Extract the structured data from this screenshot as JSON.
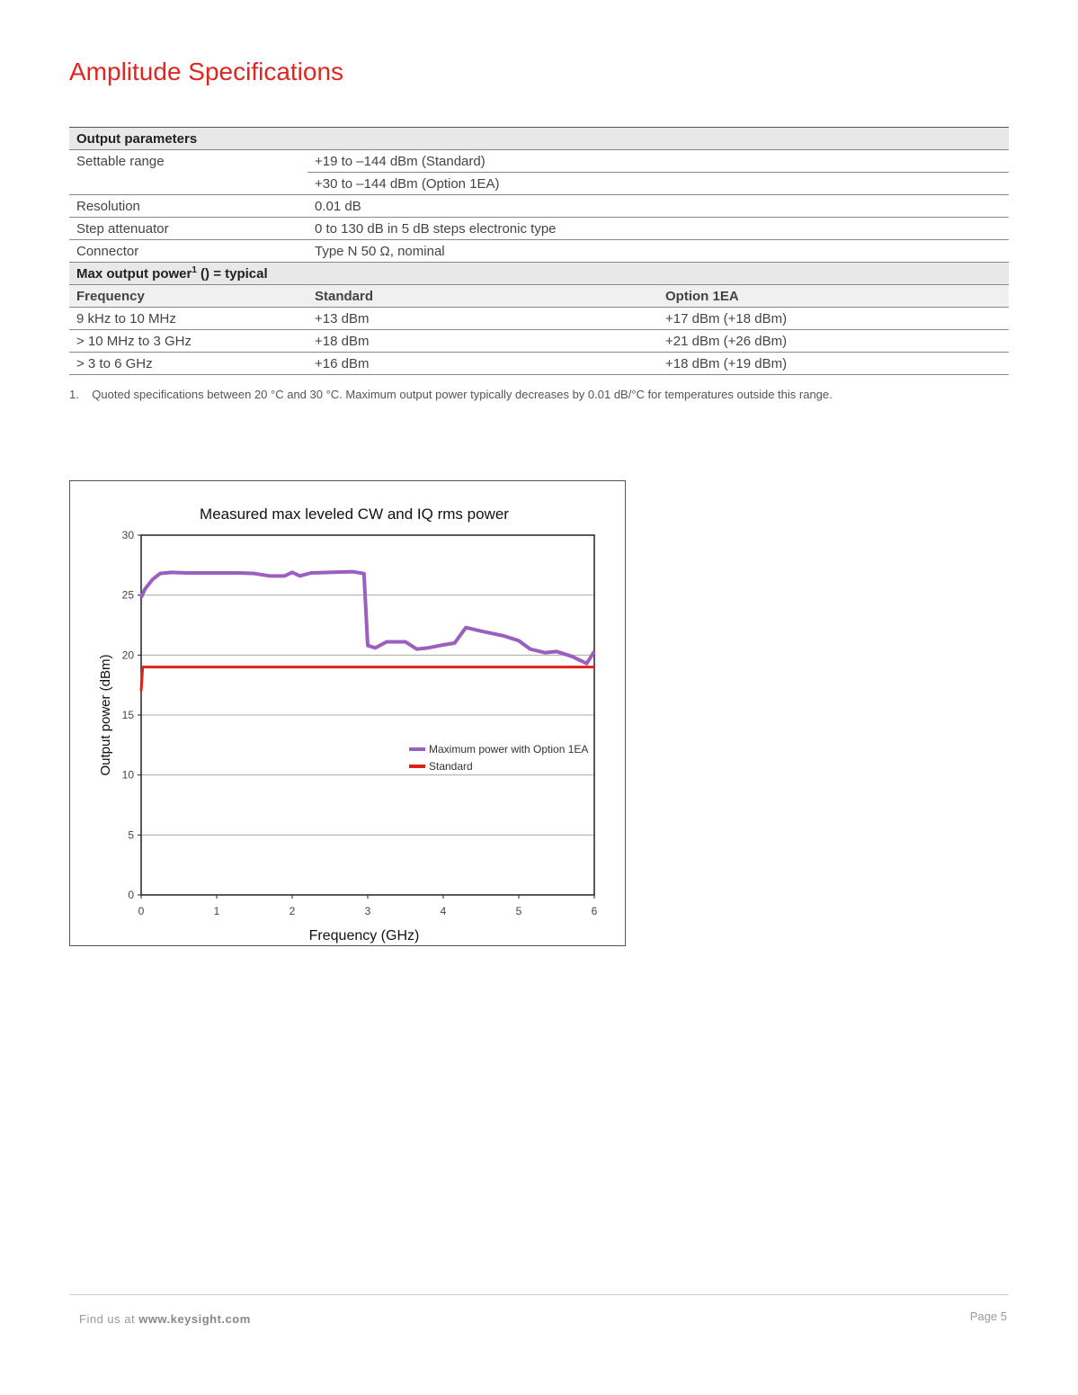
{
  "title": "Amplitude Specifications",
  "table": {
    "output_parameters": "Output parameters",
    "rows": [
      {
        "label": "Settable range",
        "value": "+19 to –144 dBm (Standard)"
      },
      {
        "label": "",
        "value": "+30 to –144 dBm (Option 1EA)"
      },
      {
        "label": "Resolution",
        "value": "0.01 dB"
      },
      {
        "label": "Step attenuator",
        "value": "0 to 130 dB in 5 dB steps electronic type"
      },
      {
        "label": "Connector",
        "value": "Type N 50 Ω, nominal"
      }
    ],
    "max_power": "Max output power",
    "max_power_sup": "1",
    "max_power_note": " () = typical",
    "headers": [
      "Frequency",
      "Standard",
      "Option 1EA"
    ],
    "power_rows": [
      [
        "9 kHz to 10 MHz",
        "+13 dBm",
        "+17 dBm (+18 dBm)"
      ],
      [
        "> 10 MHz to 3 GHz",
        "+18 dBm",
        "+21 dBm (+26 dBm)"
      ],
      [
        "> 3 to 6 GHz",
        "+16 dBm",
        "+18 dBm (+19 dBm)"
      ]
    ]
  },
  "footnote": "1.    Quoted specifications between 20 °C and 30 °C. Maximum output power typically decreases by 0.01 dB/°C for temperatures outside this range.",
  "chart_data": {
    "type": "line",
    "title": "Measured max leveled CW and IQ rms power",
    "xlabel": "Frequency (GHz)",
    "ylabel": "Output power (dBm)",
    "xlim": [
      0,
      6
    ],
    "ylim": [
      0,
      30
    ],
    "xticks": [
      "0",
      "1",
      "2",
      "3",
      "4",
      "5",
      "6"
    ],
    "yticks": [
      "0",
      "5",
      "10",
      "15",
      "20",
      "25",
      "30"
    ],
    "grid": true,
    "legend_position": "right-middle",
    "series": [
      {
        "name": "Maximum power with Option 1EA",
        "color": "#9b5fc0",
        "x": [
          0,
          0.05,
          0.15,
          0.25,
          0.4,
          0.6,
          1.0,
          1.3,
          1.5,
          1.7,
          1.9,
          2.0,
          2.1,
          2.25,
          2.5,
          2.8,
          2.95,
          3.0,
          3.1,
          3.25,
          3.5,
          3.65,
          3.8,
          4.0,
          4.15,
          4.3,
          4.5,
          4.65,
          4.8,
          5.0,
          5.15,
          5.35,
          5.5,
          5.7,
          5.9,
          6.0
        ],
        "y": [
          24.8,
          25.5,
          26.3,
          26.8,
          26.9,
          26.85,
          26.85,
          26.85,
          26.8,
          26.6,
          26.6,
          26.9,
          26.6,
          26.85,
          26.9,
          26.95,
          26.8,
          20.8,
          20.6,
          21.1,
          21.1,
          20.5,
          20.6,
          20.85,
          21.0,
          22.3,
          22.0,
          21.8,
          21.6,
          21.2,
          20.5,
          20.2,
          20.3,
          19.9,
          19.3,
          20.3
        ]
      },
      {
        "name": "Standard",
        "color": "#e0201a",
        "x": [
          0,
          0.02,
          6
        ],
        "y": [
          17,
          19,
          19
        ]
      }
    ]
  },
  "footer": {
    "find": "Find us at ",
    "site": "www.keysight.com",
    "page": "Page 5"
  }
}
